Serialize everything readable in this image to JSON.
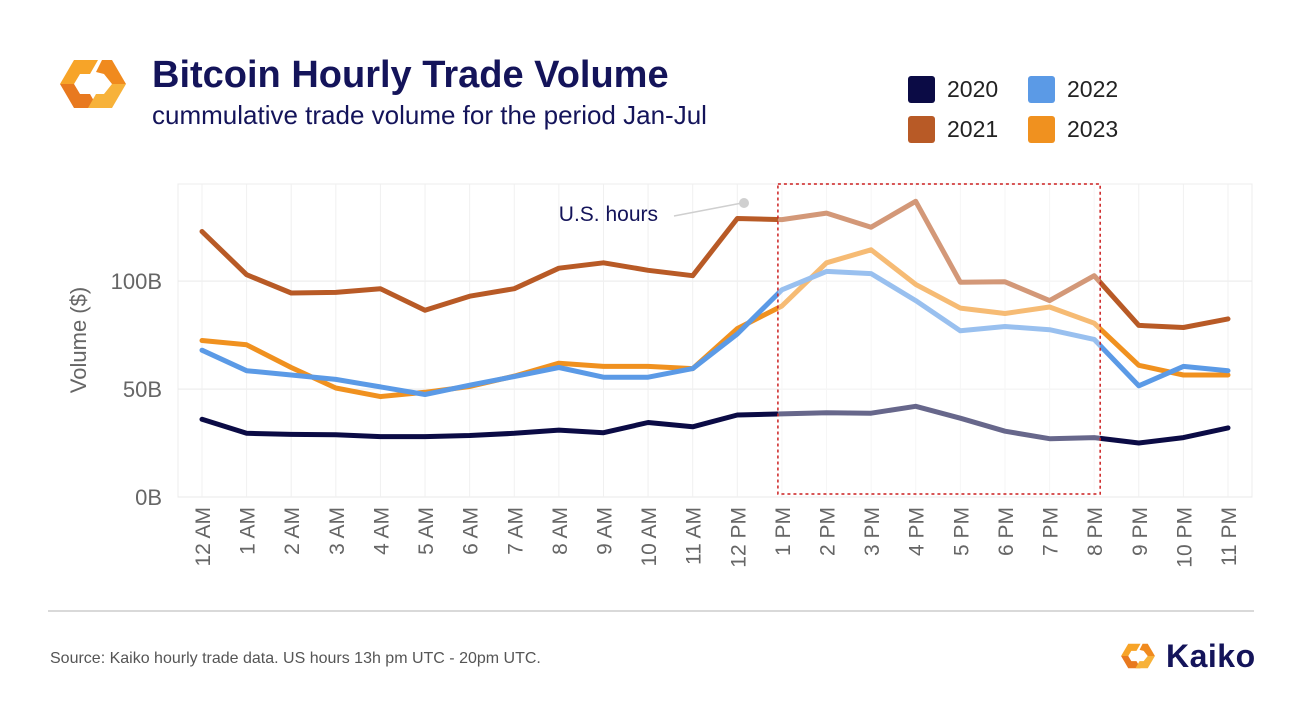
{
  "header": {
    "title": "Bitcoin Hourly Trade Volume",
    "subtitle": "cummulative trade volume for the period Jan-Jul"
  },
  "legend": [
    {
      "label": "2020",
      "color": "#0b0b45"
    },
    {
      "label": "2022",
      "color": "#5b9ae6"
    },
    {
      "label": "2021",
      "color": "#b85a26"
    },
    {
      "label": "2023",
      "color": "#f0911f"
    }
  ],
  "chart_data": {
    "type": "line",
    "title": "Bitcoin Hourly Trade Volume",
    "subtitle": "cummulative trade volume for the period Jan-Jul",
    "xlabel": "",
    "ylabel": "Volume ($)",
    "ylim": [
      0,
      145
    ],
    "y_ticks": [
      {
        "value": 0,
        "label": "0B"
      },
      {
        "value": 50,
        "label": "50B"
      },
      {
        "value": 100,
        "label": "100B"
      }
    ],
    "categories": [
      "12 AM",
      "1 AM",
      "2 AM",
      "3 AM",
      "4 AM",
      "5 AM",
      "6 AM",
      "7 AM",
      "8 AM",
      "9 AM",
      "10 AM",
      "11 AM",
      "12 PM",
      "1 PM",
      "2 PM",
      "3 PM",
      "4 PM",
      "5 PM",
      "6 PM",
      "7 PM",
      "8 PM",
      "9 PM",
      "10 PM",
      "11 PM"
    ],
    "series": [
      {
        "name": "2020",
        "color": "#0b0b45",
        "values": [
          36,
          29.5,
          29,
          28.8,
          28,
          28,
          28.5,
          29.5,
          31,
          29.8,
          34.5,
          32.5,
          38,
          38.5,
          39,
          38.8,
          42,
          36.5,
          30.5,
          27,
          27.5,
          25,
          27.5,
          32
        ]
      },
      {
        "name": "2021",
        "color": "#b85a26",
        "values": [
          123,
          103,
          94.5,
          94.8,
          96.5,
          86.5,
          93,
          96.5,
          106,
          108.5,
          105,
          102.5,
          129,
          128.5,
          131.5,
          125,
          137,
          99.5,
          99.7,
          91,
          102.5,
          79.5,
          78.5,
          82.5
        ]
      },
      {
        "name": "2022",
        "color": "#5b9ae6",
        "values": [
          68,
          58.5,
          56.5,
          54.5,
          51,
          47.5,
          51.8,
          55.8,
          60,
          55.5,
          55.5,
          59.5,
          75.5,
          96,
          104.5,
          103.5,
          91,
          77,
          79,
          77.5,
          73,
          51.5,
          60.5,
          58.5
        ]
      },
      {
        "name": "2023",
        "color": "#f0911f",
        "values": [
          72.5,
          70.5,
          60,
          50.5,
          46.5,
          48.5,
          51.2,
          56,
          62,
          60.5,
          60.5,
          59.5,
          78,
          88.5,
          108.5,
          114.5,
          98.5,
          87.5,
          85,
          88,
          80.5,
          61,
          56.5,
          56.5
        ]
      }
    ],
    "highlight": {
      "from": "1 PM",
      "to": "8 PM",
      "label": "U.S. hours"
    },
    "grid": true,
    "legend_position": "top-right"
  },
  "footer": {
    "source": "Source: Kaiko hourly trade data. US hours 13h pm UTC - 20pm UTC.",
    "brand": "Kaiko"
  }
}
